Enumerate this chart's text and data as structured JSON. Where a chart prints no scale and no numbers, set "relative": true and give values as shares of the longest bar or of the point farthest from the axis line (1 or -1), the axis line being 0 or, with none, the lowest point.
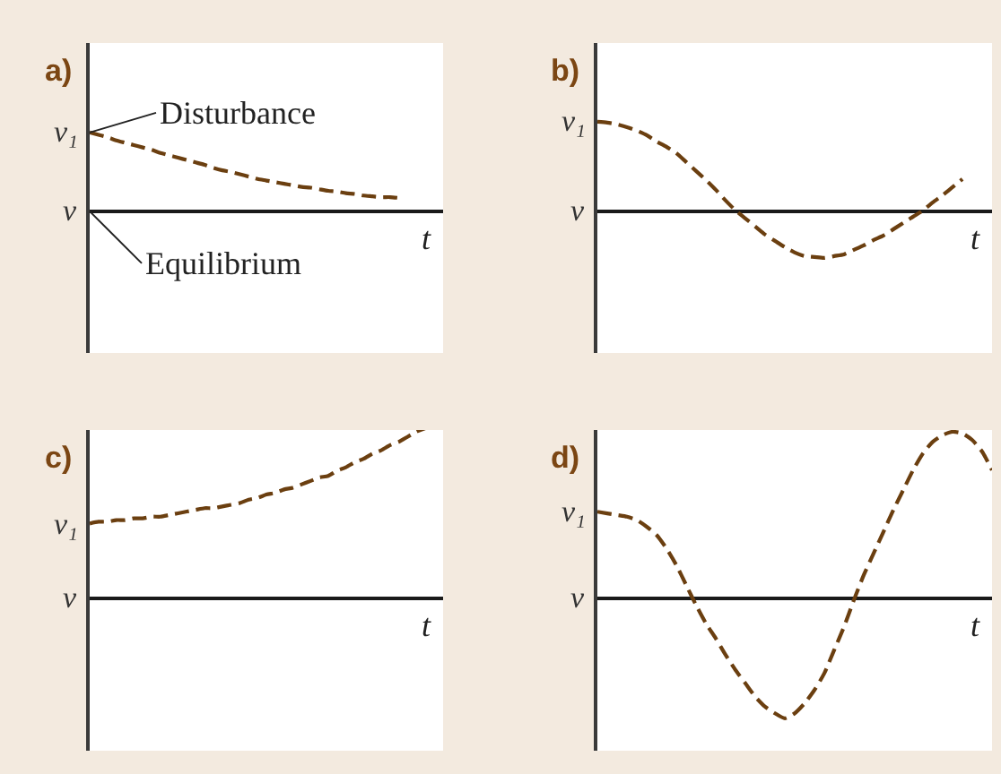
{
  "chart_data": [
    {
      "type": "line",
      "title": "a)",
      "xlabel": "t",
      "line_style": "dashed",
      "relative": true,
      "categories": [
        null,
        null,
        null,
        null,
        null,
        null,
        null,
        null,
        null,
        null,
        null,
        null,
        null,
        null,
        null,
        null,
        null,
        null,
        null,
        null,
        null,
        null,
        null,
        null,
        null,
        null,
        null,
        null,
        null,
        null,
        null,
        null,
        null,
        null,
        null,
        null,
        null,
        null,
        null,
        null,
        null
      ],
      "series": [
        {
          "color": "#6b3f10",
          "values": [
            1.0,
            0.97,
            0.94,
            0.9,
            0.87,
            0.84,
            0.81,
            0.78,
            0.74,
            0.71,
            0.68,
            0.65,
            0.62,
            0.59,
            0.55,
            0.52,
            0.5,
            0.47,
            0.44,
            0.41,
            0.39,
            0.37,
            0.35,
            0.33,
            0.31,
            0.3,
            0.28,
            0.26,
            0.25,
            0.23,
            0.22,
            0.2,
            0.19,
            0.18,
            0.18,
            0.17,
            null,
            null,
            null,
            null,
            null
          ]
        }
      ],
      "annotations": [
        "v₁",
        "v",
        "Disturbance",
        "Equilibrium"
      ]
    },
    {
      "type": "line",
      "title": "b)",
      "xlabel": "t",
      "line_style": "dashed",
      "relative": true,
      "categories": [
        null,
        null,
        null,
        null,
        null,
        null,
        null,
        null,
        null,
        null,
        null,
        null,
        null,
        null,
        null,
        null,
        null,
        null,
        null,
        null,
        null,
        null,
        null,
        null,
        null,
        null,
        null,
        null,
        null,
        null,
        null,
        null,
        null,
        null,
        null,
        null,
        null,
        null,
        null,
        null,
        null
      ],
      "series": [
        {
          "color": "#6b3f10",
          "values": [
            1.0,
            0.99,
            0.97,
            0.94,
            0.9,
            0.85,
            0.78,
            0.72,
            0.65,
            0.55,
            0.45,
            0.35,
            0.24,
            0.12,
            0.01,
            -0.08,
            -0.17,
            -0.26,
            -0.33,
            -0.4,
            -0.46,
            -0.5,
            -0.51,
            -0.52,
            -0.5,
            -0.48,
            -0.43,
            -0.38,
            -0.32,
            -0.27,
            -0.2,
            -0.13,
            -0.06,
            0.01,
            0.1,
            0.18,
            0.27,
            0.36,
            null,
            null,
            null
          ]
        }
      ],
      "annotations": [
        "v₁",
        "v"
      ]
    },
    {
      "type": "line",
      "title": "c)",
      "xlabel": "t",
      "line_style": "dashed",
      "relative": true,
      "categories": [
        null,
        null,
        null,
        null,
        null,
        null,
        null,
        null,
        null,
        null,
        null,
        null,
        null,
        null,
        null,
        null,
        null,
        null,
        null,
        null,
        null,
        null,
        null,
        null,
        null,
        null,
        null,
        null,
        null,
        null,
        null,
        null,
        null,
        null,
        null,
        null,
        null,
        null,
        null,
        null,
        null
      ],
      "series": [
        {
          "color": "#6b3f10",
          "values": [
            0.44,
            0.45,
            0.45,
            0.46,
            0.46,
            0.47,
            0.47,
            0.48,
            0.48,
            0.49,
            0.5,
            0.51,
            0.52,
            0.53,
            0.53,
            0.54,
            0.55,
            0.56,
            0.58,
            0.59,
            0.61,
            0.62,
            0.64,
            0.65,
            0.67,
            0.69,
            0.71,
            0.72,
            0.75,
            0.77,
            0.8,
            0.82,
            0.85,
            0.87,
            0.9,
            0.92,
            0.95,
            0.98,
            1.0,
            null,
            null
          ]
        }
      ],
      "annotations": [
        "v₁",
        "v"
      ]
    },
    {
      "type": "line",
      "title": "d)",
      "xlabel": "t",
      "line_style": "dashed",
      "relative": true,
      "categories": [
        null,
        null,
        null,
        null,
        null,
        null,
        null,
        null,
        null,
        null,
        null,
        null,
        null,
        null,
        null,
        null,
        null,
        null,
        null,
        null,
        null,
        null,
        null,
        null,
        null,
        null,
        null,
        null,
        null,
        null,
        null,
        null,
        null,
        null,
        null,
        null,
        null,
        null,
        null,
        null,
        null
      ],
      "series": [
        {
          "color": "#6b3f10",
          "values": [
            0.52,
            0.51,
            0.5,
            0.49,
            0.47,
            0.43,
            0.38,
            0.3,
            0.2,
            0.08,
            -0.04,
            -0.15,
            -0.24,
            -0.34,
            -0.43,
            -0.51,
            -0.59,
            -0.65,
            -0.69,
            -0.72,
            -0.69,
            -0.63,
            -0.55,
            -0.45,
            -0.31,
            -0.17,
            -0.01,
            0.14,
            0.27,
            0.4,
            0.53,
            0.65,
            0.77,
            0.87,
            0.94,
            0.98,
            1.0,
            0.99,
            0.95,
            0.88,
            0.77
          ]
        }
      ],
      "annotations": [
        "v₁",
        "v"
      ]
    }
  ]
}
